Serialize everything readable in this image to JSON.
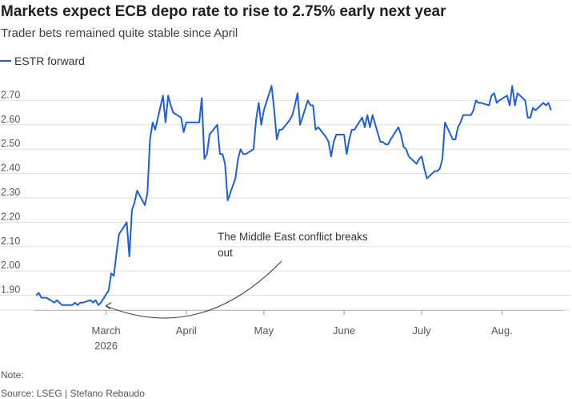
{
  "chart_data": {
    "type": "line",
    "title": "Markets expect ECB depo rate to rise to 2.75% early next year",
    "subtitle": "Trader bets remained quite stable since April",
    "legend": "top-left",
    "grid": true,
    "ylim": [
      1.8,
      2.8
    ],
    "yticks": [
      1.9,
      2.0,
      2.1,
      2.2,
      2.3,
      2.4,
      2.5,
      2.6,
      2.7
    ],
    "ytick_labels": [
      "1.90",
      "2.00",
      "2.10",
      "2.20",
      "2.30",
      "2.40",
      "2.50",
      "2.60",
      "2.70"
    ],
    "xticks": [
      {
        "label": "March",
        "sub": "2026",
        "x": "2026-03-01"
      },
      {
        "label": "April",
        "x": "2026-04-01"
      },
      {
        "label": "May",
        "x": "2026-05-01"
      },
      {
        "label": "June",
        "x": "2026-06-01"
      },
      {
        "label": "July",
        "x": "2026-07-01"
      },
      {
        "label": "Aug.",
        "x": "2026-08-01"
      }
    ],
    "series": [
      {
        "name": "ESTR forward",
        "color": "#1f5fd6",
        "points": [
          [
            "2026-02-02",
            1.9
          ],
          [
            "2026-02-03",
            1.91
          ],
          [
            "2026-02-04",
            1.89
          ],
          [
            "2026-02-05",
            1.89
          ],
          [
            "2026-02-06",
            1.89
          ],
          [
            "2026-02-09",
            1.87
          ],
          [
            "2026-02-10",
            1.88
          ],
          [
            "2026-02-11",
            1.87
          ],
          [
            "2026-02-12",
            1.86
          ],
          [
            "2026-02-13",
            1.86
          ],
          [
            "2026-02-16",
            1.86
          ],
          [
            "2026-02-17",
            1.87
          ],
          [
            "2026-02-18",
            1.86
          ],
          [
            "2026-02-19",
            1.87
          ],
          [
            "2026-02-20",
            1.87
          ],
          [
            "2026-02-23",
            1.88
          ],
          [
            "2026-02-24",
            1.87
          ],
          [
            "2026-02-25",
            1.88
          ],
          [
            "2026-02-26",
            1.86
          ],
          [
            "2026-02-27",
            1.87
          ],
          [
            "2026-03-02",
            1.92
          ],
          [
            "2026-03-03",
            1.99
          ],
          [
            "2026-03-04",
            1.98
          ],
          [
            "2026-03-05",
            2.07
          ],
          [
            "2026-03-06",
            2.15
          ],
          [
            "2026-03-09",
            2.2
          ],
          [
            "2026-03-10",
            2.06
          ],
          [
            "2026-03-11",
            2.25
          ],
          [
            "2026-03-12",
            2.28
          ],
          [
            "2026-03-13",
            2.33
          ],
          [
            "2026-03-16",
            2.27
          ],
          [
            "2026-03-17",
            2.32
          ],
          [
            "2026-03-18",
            2.54
          ],
          [
            "2026-03-19",
            2.61
          ],
          [
            "2026-03-20",
            2.58
          ],
          [
            "2026-03-23",
            2.72
          ],
          [
            "2026-03-24",
            2.61
          ],
          [
            "2026-03-25",
            2.72
          ],
          [
            "2026-03-26",
            2.68
          ],
          [
            "2026-03-27",
            2.65
          ],
          [
            "2026-03-30",
            2.63
          ],
          [
            "2026-03-31",
            2.57
          ],
          [
            "2026-04-01",
            2.61
          ],
          [
            "2026-04-02",
            2.61
          ],
          [
            "2026-04-03",
            2.61
          ],
          [
            "2026-04-06",
            2.61
          ],
          [
            "2026-04-07",
            2.71
          ],
          [
            "2026-04-08",
            2.46
          ],
          [
            "2026-04-09",
            2.48
          ],
          [
            "2026-04-10",
            2.56
          ],
          [
            "2026-04-13",
            2.6
          ],
          [
            "2026-04-14",
            2.48
          ],
          [
            "2026-04-15",
            2.48
          ],
          [
            "2026-04-16",
            2.44
          ],
          [
            "2026-04-17",
            2.29
          ],
          [
            "2026-04-20",
            2.38
          ],
          [
            "2026-04-21",
            2.46
          ],
          [
            "2026-04-22",
            2.5
          ],
          [
            "2026-04-23",
            2.48
          ],
          [
            "2026-04-24",
            2.48
          ],
          [
            "2026-04-27",
            2.5
          ],
          [
            "2026-04-28",
            2.62
          ],
          [
            "2026-04-29",
            2.69
          ],
          [
            "2026-04-30",
            2.6
          ],
          [
            "2026-05-01",
            2.66
          ],
          [
            "2026-05-04",
            2.76
          ],
          [
            "2026-05-05",
            2.66
          ],
          [
            "2026-05-06",
            2.54
          ],
          [
            "2026-05-07",
            2.58
          ],
          [
            "2026-05-08",
            2.58
          ],
          [
            "2026-05-11",
            2.62
          ],
          [
            "2026-05-12",
            2.64
          ],
          [
            "2026-05-13",
            2.68
          ],
          [
            "2026-05-14",
            2.73
          ],
          [
            "2026-05-15",
            2.6
          ],
          [
            "2026-05-18",
            2.7
          ],
          [
            "2026-05-19",
            2.68
          ],
          [
            "2026-05-20",
            2.68
          ],
          [
            "2026-05-21",
            2.58
          ],
          [
            "2026-05-22",
            2.59
          ],
          [
            "2026-05-25",
            2.55
          ],
          [
            "2026-05-26",
            2.53
          ],
          [
            "2026-05-27",
            2.47
          ],
          [
            "2026-05-28",
            2.53
          ],
          [
            "2026-05-29",
            2.56
          ],
          [
            "2026-06-01",
            2.56
          ],
          [
            "2026-06-02",
            2.48
          ],
          [
            "2026-06-03",
            2.54
          ],
          [
            "2026-06-04",
            2.58
          ],
          [
            "2026-06-05",
            2.58
          ],
          [
            "2026-06-08",
            2.63
          ],
          [
            "2026-06-09",
            2.59
          ],
          [
            "2026-06-10",
            2.64
          ],
          [
            "2026-06-11",
            2.59
          ],
          [
            "2026-06-12",
            2.64
          ],
          [
            "2026-06-15",
            2.53
          ],
          [
            "2026-06-16",
            2.53
          ],
          [
            "2026-06-17",
            2.52
          ],
          [
            "2026-06-18",
            2.52
          ],
          [
            "2026-06-19",
            2.54
          ],
          [
            "2026-06-22",
            2.59
          ],
          [
            "2026-06-23",
            2.56
          ],
          [
            "2026-06-24",
            2.51
          ],
          [
            "2026-06-25",
            2.5
          ],
          [
            "2026-06-26",
            2.47
          ],
          [
            "2026-06-29",
            2.44
          ],
          [
            "2026-06-30",
            2.46
          ],
          [
            "2026-07-01",
            2.47
          ],
          [
            "2026-07-02",
            2.42
          ],
          [
            "2026-07-03",
            2.38
          ],
          [
            "2026-07-06",
            2.41
          ],
          [
            "2026-07-07",
            2.41
          ],
          [
            "2026-07-08",
            2.42
          ],
          [
            "2026-07-09",
            2.46
          ],
          [
            "2026-07-10",
            2.61
          ],
          [
            "2026-07-13",
            2.54
          ],
          [
            "2026-07-14",
            2.54
          ],
          [
            "2026-07-15",
            2.59
          ],
          [
            "2026-07-16",
            2.61
          ],
          [
            "2026-07-17",
            2.64
          ],
          [
            "2026-07-20",
            2.64
          ],
          [
            "2026-07-21",
            2.66
          ],
          [
            "2026-07-22",
            2.7
          ],
          [
            "2026-07-23",
            2.69
          ],
          [
            "2026-07-24",
            2.69
          ],
          [
            "2026-07-27",
            2.68
          ],
          [
            "2026-07-28",
            2.72
          ],
          [
            "2026-07-29",
            2.73
          ],
          [
            "2026-07-30",
            2.69
          ],
          [
            "2026-07-31",
            2.7
          ],
          [
            "2026-08-03",
            2.72
          ],
          [
            "2026-08-04",
            2.68
          ],
          [
            "2026-08-05",
            2.76
          ],
          [
            "2026-08-06",
            2.68
          ],
          [
            "2026-08-07",
            2.73
          ],
          [
            "2026-08-10",
            2.7
          ],
          [
            "2026-08-11",
            2.63
          ],
          [
            "2026-08-12",
            2.63
          ],
          [
            "2026-08-13",
            2.67
          ],
          [
            "2026-08-14",
            2.66
          ],
          [
            "2026-08-17",
            2.69
          ],
          [
            "2026-08-18",
            2.68
          ],
          [
            "2026-08-19",
            2.69
          ],
          [
            "2026-08-20",
            2.66
          ]
        ]
      }
    ],
    "annotations": [
      {
        "text_lines": [
          "The Middle East conflict breaks",
          "out"
        ],
        "points_to": "2026-02-27"
      }
    ]
  },
  "footer": {
    "note": "Note:",
    "source": "Source: LSEG | Stefano Rebaudo"
  }
}
